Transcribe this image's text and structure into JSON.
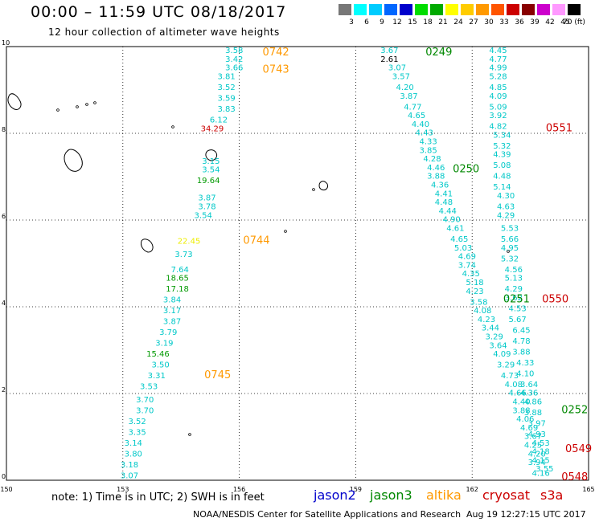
{
  "header": {
    "title": "00:00 – 11:59 UTC 08/18/2017",
    "subtitle": "12 hour collection of altimeter wave heights"
  },
  "colorbar": {
    "colors": [
      "#777777",
      "#00ffff",
      "#00ccff",
      "#0066ff",
      "#0000cc",
      "#00dd00",
      "#00aa00",
      "#ffff00",
      "#ffcc00",
      "#ff9900",
      "#ff5500",
      "#cc0000",
      "#880000",
      "#cc00cc",
      "#ff99ff",
      "#000000"
    ],
    "labels": [
      "3",
      "6",
      "9",
      "12",
      "15",
      "18",
      "21",
      "24",
      "27",
      "30",
      "33",
      "36",
      "39",
      "42",
      "45",
      "70 (ft)"
    ]
  },
  "map": {
    "x_ticks": [
      "150",
      "153",
      "156",
      "159",
      "162",
      "165"
    ],
    "y_ticks": [
      "0",
      "2",
      "4",
      "6",
      "8",
      "10"
    ],
    "x_range": [
      150,
      165
    ],
    "y_range": [
      0,
      10
    ],
    "grid": "dotted"
  },
  "tracks": {
    "t0742": [
      {
        "lon": 156.1,
        "lat": 9.85,
        "v": "3.58",
        "c": "#00c8c8"
      },
      {
        "lon": 156.1,
        "lat": 9.65,
        "v": "3.42",
        "c": "#00c8c8"
      },
      {
        "lon": 156.1,
        "lat": 9.45,
        "v": "3.66",
        "c": "#00c8c8"
      },
      {
        "lon": 155.9,
        "lat": 9.25,
        "v": "3.81",
        "c": "#00c8c8"
      },
      {
        "lon": 155.9,
        "lat": 9.0,
        "v": "3.52",
        "c": "#00c8c8"
      },
      {
        "lon": 155.9,
        "lat": 8.75,
        "v": "3.59",
        "c": "#00c8c8"
      },
      {
        "lon": 155.9,
        "lat": 8.5,
        "v": "3.83",
        "c": "#00c8c8"
      },
      {
        "lon": 155.7,
        "lat": 8.25,
        "v": "6.12",
        "c": "#00c8c8"
      },
      {
        "lon": 155.6,
        "lat": 8.05,
        "v": "34.29",
        "c": "#cc0000"
      },
      {
        "lon": 155.5,
        "lat": 7.3,
        "v": "3.15",
        "c": "#00c8c8"
      },
      {
        "lon": 155.5,
        "lat": 7.1,
        "v": "3.54",
        "c": "#00c8c8"
      },
      {
        "lon": 155.5,
        "lat": 6.85,
        "v": "19.64",
        "c": "#009900"
      },
      {
        "lon": 155.4,
        "lat": 6.45,
        "v": "3.87",
        "c": "#00c8c8"
      },
      {
        "lon": 155.4,
        "lat": 6.25,
        "v": "3.78",
        "c": "#00c8c8"
      },
      {
        "lon": 155.3,
        "lat": 6.05,
        "v": "3.54",
        "c": "#00c8c8"
      },
      {
        "lon": 155.0,
        "lat": 5.45,
        "v": "22.45",
        "c": "#eeee00"
      },
      {
        "lon": 154.8,
        "lat": 5.15,
        "v": "3.73",
        "c": "#00c8c8"
      },
      {
        "lon": 154.7,
        "lat": 4.8,
        "v": "7.64",
        "c": "#00c8c8"
      },
      {
        "lon": 154.7,
        "lat": 4.6,
        "v": "18.65",
        "c": "#009900"
      },
      {
        "lon": 154.7,
        "lat": 4.35,
        "v": "17.18",
        "c": "#009900"
      },
      {
        "lon": 154.5,
        "lat": 4.1,
        "v": "3.84",
        "c": "#00c8c8"
      },
      {
        "lon": 154.5,
        "lat": 3.85,
        "v": "3.17",
        "c": "#00c8c8"
      },
      {
        "lon": 154.5,
        "lat": 3.6,
        "v": "3.87",
        "c": "#00c8c8"
      },
      {
        "lon": 154.4,
        "lat": 3.35,
        "v": "3.79",
        "c": "#00c8c8"
      },
      {
        "lon": 154.3,
        "lat": 3.1,
        "v": "3.19",
        "c": "#00c8c8"
      },
      {
        "lon": 154.2,
        "lat": 2.85,
        "v": "15.46",
        "c": "#009900"
      },
      {
        "lon": 154.2,
        "lat": 2.6,
        "v": "3.50",
        "c": "#00c8c8"
      },
      {
        "lon": 154.1,
        "lat": 2.35,
        "v": "3.31",
        "c": "#00c8c8"
      },
      {
        "lon": 153.9,
        "lat": 2.1,
        "v": "3.53",
        "c": "#00c8c8"
      },
      {
        "lon": 153.8,
        "lat": 1.8,
        "v": "3.70",
        "c": "#00c8c8"
      },
      {
        "lon": 153.8,
        "lat": 1.55,
        "v": "3.70",
        "c": "#00c8c8"
      },
      {
        "lon": 153.6,
        "lat": 1.3,
        "v": "3.52",
        "c": "#00c8c8"
      },
      {
        "lon": 153.6,
        "lat": 1.05,
        "v": "3.35",
        "c": "#00c8c8"
      },
      {
        "lon": 153.5,
        "lat": 0.8,
        "v": "3.14",
        "c": "#00c8c8"
      },
      {
        "lon": 153.5,
        "lat": 0.55,
        "v": "3.80",
        "c": "#00c8c8"
      },
      {
        "lon": 153.4,
        "lat": 0.3,
        "v": "3.18",
        "c": "#00c8c8"
      },
      {
        "lon": 153.4,
        "lat": 0.05,
        "v": "3.07",
        "c": "#00c8c8"
      }
    ],
    "t0249": [
      {
        "lon": 160.1,
        "lat": 9.85,
        "v": "3.67",
        "c": "#00c8c8"
      },
      {
        "lon": 160.1,
        "lat": 9.65,
        "v": "2.61",
        "c": "#000000"
      },
      {
        "lon": 160.3,
        "lat": 9.45,
        "v": "3.07",
        "c": "#00c8c8"
      },
      {
        "lon": 160.4,
        "lat": 9.25,
        "v": "3.57",
        "c": "#00c8c8"
      },
      {
        "lon": 160.5,
        "lat": 9.0,
        "v": "4.20",
        "c": "#00c8c8"
      },
      {
        "lon": 160.6,
        "lat": 8.8,
        "v": "3.87",
        "c": "#00c8c8"
      },
      {
        "lon": 160.7,
        "lat": 8.55,
        "v": "4.77",
        "c": "#00c8c8"
      },
      {
        "lon": 160.8,
        "lat": 8.35,
        "v": "4.65",
        "c": "#00c8c8"
      },
      {
        "lon": 160.9,
        "lat": 8.15,
        "v": "4.40",
        "c": "#00c8c8"
      },
      {
        "lon": 161.0,
        "lat": 7.95,
        "v": "4.43",
        "c": "#00c8c8"
      },
      {
        "lon": 161.1,
        "lat": 7.75,
        "v": "4.33",
        "c": "#00c8c8"
      },
      {
        "lon": 161.1,
        "lat": 7.55,
        "v": "3.85",
        "c": "#00c8c8"
      },
      {
        "lon": 161.2,
        "lat": 7.35,
        "v": "4.28",
        "c": "#00c8c8"
      },
      {
        "lon": 161.3,
        "lat": 7.15,
        "v": "4.46",
        "c": "#00c8c8"
      },
      {
        "lon": 161.3,
        "lat": 6.95,
        "v": "3.88",
        "c": "#00c8c8"
      },
      {
        "lon": 161.4,
        "lat": 6.75,
        "v": "4.36",
        "c": "#00c8c8"
      },
      {
        "lon": 161.5,
        "lat": 6.55,
        "v": "4.41",
        "c": "#00c8c8"
      },
      {
        "lon": 161.5,
        "lat": 6.35,
        "v": "4.48",
        "c": "#00c8c8"
      },
      {
        "lon": 161.6,
        "lat": 6.15,
        "v": "4.44",
        "c": "#00c8c8"
      },
      {
        "lon": 161.7,
        "lat": 5.95,
        "v": "4.90",
        "c": "#00c8c8"
      },
      {
        "lon": 161.8,
        "lat": 5.75,
        "v": "4.61",
        "c": "#00c8c8"
      },
      {
        "lon": 161.9,
        "lat": 5.5,
        "v": "4.65",
        "c": "#00c8c8"
      },
      {
        "lon": 162.0,
        "lat": 5.3,
        "v": "5.03",
        "c": "#00c8c8"
      },
      {
        "lon": 162.1,
        "lat": 5.1,
        "v": "4.69",
        "c": "#00c8c8"
      },
      {
        "lon": 162.1,
        "lat": 4.9,
        "v": "3.74",
        "c": "#00c8c8"
      },
      {
        "lon": 162.2,
        "lat": 4.7,
        "v": "4.35",
        "c": "#00c8c8"
      },
      {
        "lon": 162.3,
        "lat": 4.5,
        "v": "5.18",
        "c": "#00c8c8"
      },
      {
        "lon": 162.3,
        "lat": 4.3,
        "v": "4.23",
        "c": "#00c8c8"
      },
      {
        "lon": 162.4,
        "lat": 4.05,
        "v": "3.58",
        "c": "#00c8c8"
      },
      {
        "lon": 162.5,
        "lat": 3.85,
        "v": "4.08",
        "c": "#00c8c8"
      },
      {
        "lon": 162.6,
        "lat": 3.65,
        "v": "4.23",
        "c": "#00c8c8"
      },
      {
        "lon": 162.7,
        "lat": 3.45,
        "v": "3.44",
        "c": "#00c8c8"
      },
      {
        "lon": 162.8,
        "lat": 3.25,
        "v": "3.29",
        "c": "#00c8c8"
      },
      {
        "lon": 162.9,
        "lat": 3.05,
        "v": "3.64",
        "c": "#00c8c8"
      },
      {
        "lon": 163.0,
        "lat": 2.85,
        "v": "4.09",
        "c": "#00c8c8"
      },
      {
        "lon": 163.1,
        "lat": 2.6,
        "v": "3.29",
        "c": "#00c8c8"
      },
      {
        "lon": 163.2,
        "lat": 2.35,
        "v": "4.73",
        "c": "#00c8c8"
      },
      {
        "lon": 163.3,
        "lat": 2.15,
        "v": "4.08",
        "c": "#00c8c8"
      },
      {
        "lon": 163.4,
        "lat": 1.95,
        "v": "4.66",
        "c": "#00c8c8"
      },
      {
        "lon": 163.5,
        "lat": 1.75,
        "v": "4.40",
        "c": "#00c8c8"
      },
      {
        "lon": 163.5,
        "lat": 1.55,
        "v": "3.88",
        "c": "#00c8c8"
      },
      {
        "lon": 163.6,
        "lat": 1.35,
        "v": "4.06",
        "c": "#00c8c8"
      },
      {
        "lon": 163.7,
        "lat": 1.15,
        "v": "4.69",
        "c": "#00c8c8"
      },
      {
        "lon": 163.8,
        "lat": 0.95,
        "v": "3.67",
        "c": "#00c8c8"
      },
      {
        "lon": 163.8,
        "lat": 0.75,
        "v": "4.25",
        "c": "#00c8c8"
      },
      {
        "lon": 163.9,
        "lat": 0.55,
        "v": "4.20",
        "c": "#00c8c8"
      },
      {
        "lon": 163.9,
        "lat": 0.35,
        "v": "3.94",
        "c": "#00c8c8"
      },
      {
        "lon": 164.0,
        "lat": 0.1,
        "v": "4.16",
        "c": "#00c8c8"
      }
    ],
    "t0551": [
      {
        "lon": 162.9,
        "lat": 9.85,
        "v": "4.45",
        "c": "#00c8c8"
      },
      {
        "lon": 162.9,
        "lat": 9.65,
        "v": "4.77",
        "c": "#00c8c8"
      },
      {
        "lon": 162.9,
        "lat": 9.45,
        "v": "4.99",
        "c": "#00c8c8"
      },
      {
        "lon": 162.9,
        "lat": 9.25,
        "v": "5.28",
        "c": "#00c8c8"
      },
      {
        "lon": 162.9,
        "lat": 9.0,
        "v": "4.85",
        "c": "#00c8c8"
      },
      {
        "lon": 162.9,
        "lat": 8.8,
        "v": "4.09",
        "c": "#00c8c8"
      },
      {
        "lon": 162.9,
        "lat": 8.55,
        "v": "5.09",
        "c": "#00c8c8"
      },
      {
        "lon": 162.9,
        "lat": 8.35,
        "v": "3.92",
        "c": "#00c8c8"
      },
      {
        "lon": 162.9,
        "lat": 8.1,
        "v": "4.82",
        "c": "#00c8c8"
      },
      {
        "lon": 163.0,
        "lat": 7.9,
        "v": "5.34",
        "c": "#00c8c8"
      },
      {
        "lon": 163.0,
        "lat": 7.65,
        "v": "5.32",
        "c": "#00c8c8"
      },
      {
        "lon": 163.0,
        "lat": 7.45,
        "v": "4.39",
        "c": "#00c8c8"
      },
      {
        "lon": 163.0,
        "lat": 7.2,
        "v": "5.08",
        "c": "#00c8c8"
      },
      {
        "lon": 163.0,
        "lat": 6.95,
        "v": "4.48",
        "c": "#00c8c8"
      },
      {
        "lon": 163.0,
        "lat": 6.7,
        "v": "5.14",
        "c": "#00c8c8"
      },
      {
        "lon": 163.1,
        "lat": 6.5,
        "v": "4.30",
        "c": "#00c8c8"
      },
      {
        "lon": 163.1,
        "lat": 6.25,
        "v": "4.63",
        "c": "#00c8c8"
      },
      {
        "lon": 163.1,
        "lat": 6.05,
        "v": "4.29",
        "c": "#00c8c8"
      },
      {
        "lon": 163.2,
        "lat": 5.75,
        "v": "5.53",
        "c": "#00c8c8"
      },
      {
        "lon": 163.2,
        "lat": 5.5,
        "v": "5.66",
        "c": "#00c8c8"
      },
      {
        "lon": 163.2,
        "lat": 5.3,
        "v": "4.95",
        "c": "#00c8c8"
      },
      {
        "lon": 163.2,
        "lat": 5.05,
        "v": "5.32",
        "c": "#00c8c8"
      },
      {
        "lon": 163.3,
        "lat": 4.8,
        "v": "4.56",
        "c": "#00c8c8"
      },
      {
        "lon": 163.3,
        "lat": 4.6,
        "v": "5.13",
        "c": "#00c8c8"
      },
      {
        "lon": 163.3,
        "lat": 4.35,
        "v": "4.29",
        "c": "#00c8c8"
      },
      {
        "lon": 163.3,
        "lat": 4.15,
        "v": "3.62",
        "c": "#00c8c8"
      },
      {
        "lon": 163.4,
        "lat": 3.9,
        "v": "4.53",
        "c": "#00c8c8"
      },
      {
        "lon": 163.4,
        "lat": 3.65,
        "v": "5.67",
        "c": "#00c8c8"
      },
      {
        "lon": 163.5,
        "lat": 3.4,
        "v": "6.45",
        "c": "#00c8c8"
      },
      {
        "lon": 163.5,
        "lat": 3.15,
        "v": "4.78",
        "c": "#00c8c8"
      },
      {
        "lon": 163.5,
        "lat": 2.9,
        "v": "3.88",
        "c": "#00c8c8"
      },
      {
        "lon": 163.6,
        "lat": 2.65,
        "v": "4.33",
        "c": "#00c8c8"
      },
      {
        "lon": 163.6,
        "lat": 2.4,
        "v": "4.10",
        "c": "#00c8c8"
      },
      {
        "lon": 163.7,
        "lat": 2.15,
        "v": "3.64",
        "c": "#00c8c8"
      },
      {
        "lon": 163.7,
        "lat": 1.95,
        "v": "4.36",
        "c": "#00c8c8"
      },
      {
        "lon": 163.8,
        "lat": 1.75,
        "v": "4.86",
        "c": "#00c8c8"
      },
      {
        "lon": 163.8,
        "lat": 1.5,
        "v": "3.88",
        "c": "#00c8c8"
      },
      {
        "lon": 163.9,
        "lat": 1.25,
        "v": "3.97",
        "c": "#00c8c8"
      },
      {
        "lon": 163.9,
        "lat": 1.0,
        "v": "4.93",
        "c": "#00c8c8"
      },
      {
        "lon": 164.0,
        "lat": 0.8,
        "v": "4.53",
        "c": "#00c8c8"
      },
      {
        "lon": 164.0,
        "lat": 0.6,
        "v": "4.18",
        "c": "#00c8c8"
      },
      {
        "lon": 164.0,
        "lat": 0.4,
        "v": "4.15",
        "c": "#00c8c8"
      },
      {
        "lon": 164.1,
        "lat": 0.2,
        "v": "3.55",
        "c": "#00c8c8"
      }
    ]
  },
  "pass_labels": [
    {
      "text": "0742",
      "c": "#ff9900",
      "lon": 156.6,
      "lat": 9.8
    },
    {
      "text": "0743",
      "c": "#ff9900",
      "lon": 156.6,
      "lat": 9.4
    },
    {
      "text": "0744",
      "c": "#ff9900",
      "lon": 156.1,
      "lat": 5.45
    },
    {
      "text": "0745",
      "c": "#ff9900",
      "lon": 155.1,
      "lat": 2.35
    },
    {
      "text": "0249",
      "c": "#008800",
      "lon": 160.8,
      "lat": 9.8
    },
    {
      "text": "0250",
      "c": "#008800",
      "lon": 161.5,
      "lat": 7.1
    },
    {
      "text": "0251",
      "c": "#008800",
      "lon": 162.8,
      "lat": 4.1
    },
    {
      "text": "0252",
      "c": "#008800",
      "lon": 164.3,
      "lat": 1.55
    },
    {
      "text": "0551",
      "c": "#cc0000",
      "lon": 163.9,
      "lat": 8.05
    },
    {
      "text": "0550",
      "c": "#cc0000",
      "lon": 163.8,
      "lat": 4.1
    },
    {
      "text": "0549",
      "c": "#cc0000",
      "lon": 164.4,
      "lat": 0.65
    },
    {
      "text": "0548",
      "c": "#cc0000",
      "lon": 164.3,
      "lat": 0.0
    }
  ],
  "footer": {
    "note": "note: 1) Time is in UTC; 2) SWH is in feet",
    "satellites": [
      {
        "name": "jason2",
        "color": "#0000cc"
      },
      {
        "name": "jason3",
        "color": "#008800"
      },
      {
        "name": "altika",
        "color": "#ff9900"
      },
      {
        "name": "cryosat",
        "color": "#cc0000"
      },
      {
        "name": "s3a",
        "color": "#cc0000"
      }
    ],
    "credit": "NOAA/NESDIS Center for Satellite Applications and Research",
    "timestamp": "Aug 19 12:27:15 UTC 2017"
  }
}
